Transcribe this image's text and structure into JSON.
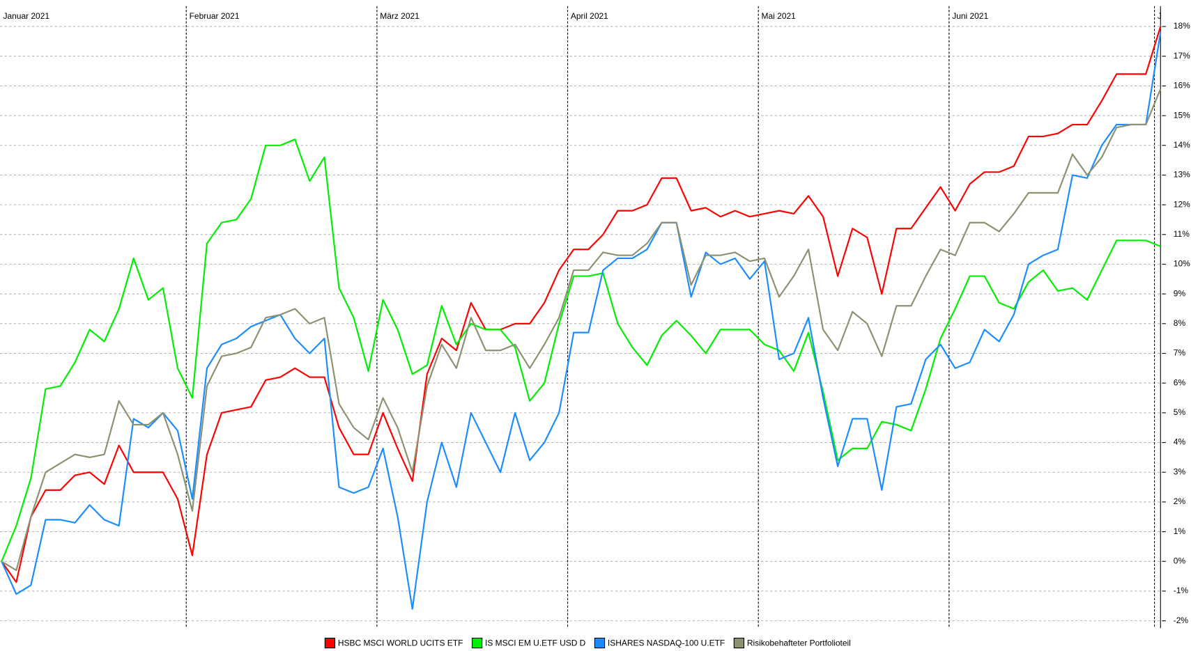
{
  "chart_data": {
    "type": "line",
    "categories": [
      "Januar 2021",
      null,
      null,
      null,
      null,
      null,
      null,
      null,
      null,
      null,
      null,
      null,
      null,
      "Februar 2021",
      null,
      null,
      null,
      null,
      null,
      null,
      null,
      null,
      null,
      null,
      null,
      null,
      "März 2021",
      null,
      null,
      null,
      null,
      null,
      null,
      null,
      null,
      null,
      null,
      null,
      null,
      "April 2021",
      null,
      null,
      null,
      null,
      null,
      null,
      null,
      null,
      null,
      null,
      null,
      null,
      "Mai 2021",
      null,
      null,
      null,
      null,
      null,
      null,
      null,
      null,
      null,
      null,
      null,
      null,
      "Juni 2021",
      null,
      null,
      null,
      null,
      null,
      null,
      null,
      null,
      null,
      null,
      null,
      null,
      null,
      "J"
    ],
    "series": [
      {
        "name": "HSBC MSCI WORLD UCITS ETF",
        "color": "#ff0000",
        "values": [
          0,
          -0.7,
          1.5,
          2.4,
          2.4,
          2.9,
          3.0,
          2.6,
          3.9,
          3.0,
          3.0,
          3.0,
          2.1,
          0.2,
          3.6,
          5.0,
          5.1,
          5.2,
          6.1,
          6.2,
          6.5,
          6.2,
          6.2,
          4.5,
          3.6,
          3.6,
          5.0,
          3.8,
          2.7,
          6.3,
          7.5,
          7.1,
          8.7,
          7.8,
          7.8,
          8.0,
          8.0,
          8.7,
          9.8,
          10.5,
          10.5,
          11.0,
          11.8,
          11.8,
          12.0,
          12.9,
          12.9,
          11.8,
          11.9,
          11.6,
          11.8,
          11.6,
          11.7,
          11.8,
          11.7,
          12.3,
          11.6,
          9.6,
          11.2,
          10.9,
          9.0,
          11.2,
          11.2,
          11.9,
          12.6,
          11.8,
          12.7,
          13.1,
          13.1,
          13.3,
          14.3,
          14.3,
          14.4,
          14.7,
          14.7,
          15.5,
          16.4,
          16.4,
          16.4,
          18.0
        ]
      },
      {
        "name": "IS MSCI EM U.ETF USD D",
        "color": "#00ee00",
        "values": [
          0,
          1.2,
          2.8,
          5.8,
          5.9,
          6.7,
          7.8,
          7.4,
          8.5,
          10.2,
          8.8,
          9.2,
          6.5,
          5.5,
          10.7,
          11.4,
          11.5,
          12.2,
          14.0,
          14.0,
          14.2,
          12.8,
          13.6,
          9.2,
          8.2,
          6.4,
          8.8,
          7.8,
          6.3,
          6.6,
          8.6,
          7.3,
          8.0,
          7.8,
          7.8,
          7.2,
          5.4,
          6.0,
          8.0,
          9.6,
          9.6,
          9.7,
          8.0,
          7.2,
          6.6,
          7.6,
          8.1,
          7.6,
          7.0,
          7.8,
          7.8,
          7.8,
          7.3,
          7.1,
          6.4,
          7.7,
          5.7,
          3.4,
          3.8,
          3.8,
          4.7,
          4.6,
          4.4,
          5.8,
          7.5,
          8.5,
          9.6,
          9.6,
          8.7,
          8.5,
          9.4,
          9.8,
          9.1,
          9.2,
          8.8,
          9.8,
          10.8,
          10.8,
          10.8,
          10.6
        ]
      },
      {
        "name": "ISHARES NASDAQ-100 U.ETF",
        "color": "#1a8cff",
        "values": [
          0,
          -1.1,
          -0.8,
          1.4,
          1.4,
          1.3,
          1.9,
          1.4,
          1.2,
          4.8,
          4.5,
          5.0,
          4.4,
          2.1,
          6.5,
          7.3,
          7.5,
          7.9,
          8.1,
          8.3,
          7.5,
          7.0,
          7.5,
          2.5,
          2.3,
          2.5,
          3.8,
          1.5,
          -1.6,
          2.0,
          4.0,
          2.5,
          5.0,
          4.0,
          3.0,
          5.0,
          3.4,
          4.0,
          5.0,
          7.7,
          7.7,
          9.8,
          10.2,
          10.2,
          10.5,
          11.4,
          11.4,
          8.9,
          10.4,
          10.0,
          10.2,
          9.5,
          10.1,
          6.8,
          7.0,
          8.2,
          5.5,
          3.2,
          4.8,
          4.8,
          2.4,
          5.2,
          5.3,
          6.8,
          7.3,
          6.5,
          6.7,
          7.8,
          7.4,
          8.3,
          10.0,
          10.3,
          10.5,
          13.0,
          12.9,
          14.0,
          14.7,
          14.7,
          14.7,
          17.8
        ]
      },
      {
        "name": "Risikobehafteter Portfolioteil",
        "color": "#8c9170",
        "values": [
          0,
          -0.3,
          1.5,
          3.0,
          3.3,
          3.6,
          3.5,
          3.6,
          5.4,
          4.6,
          4.6,
          5.0,
          3.6,
          1.7,
          5.9,
          6.9,
          7.0,
          7.2,
          8.2,
          8.3,
          8.5,
          8.0,
          8.2,
          5.3,
          4.5,
          4.1,
          5.5,
          4.5,
          3.0,
          5.9,
          7.3,
          6.5,
          8.2,
          7.1,
          7.1,
          7.3,
          6.5,
          7.3,
          8.2,
          9.8,
          9.8,
          10.4,
          10.3,
          10.3,
          10.7,
          11.4,
          11.4,
          9.3,
          10.3,
          10.3,
          10.4,
          10.1,
          10.2,
          8.9,
          9.6,
          10.5,
          7.8,
          7.1,
          8.4,
          8.0,
          6.9,
          8.6,
          8.6,
          9.6,
          10.5,
          10.3,
          11.4,
          11.4,
          11.1,
          11.7,
          12.4,
          12.4,
          12.4,
          13.7,
          13.0,
          13.6,
          14.6,
          14.7,
          14.7,
          15.9
        ]
      }
    ],
    "ylim": [
      -2.25,
      18.1
    ],
    "yticks": [
      {
        "value": -2,
        "label": "-2%"
      },
      {
        "value": -1,
        "label": "-1%"
      },
      {
        "value": 0,
        "label": "0%"
      },
      {
        "value": 1,
        "label": "1%"
      },
      {
        "value": 2,
        "label": "2%"
      },
      {
        "value": 3,
        "label": "3%"
      },
      {
        "value": 4,
        "label": "4%"
      },
      {
        "value": 5,
        "label": "5%"
      },
      {
        "value": 6,
        "label": "6%"
      },
      {
        "value": 7,
        "label": "7%"
      },
      {
        "value": 8,
        "label": "8%"
      },
      {
        "value": 9,
        "label": "9%"
      },
      {
        "value": 10,
        "label": "10%"
      },
      {
        "value": 11,
        "label": "11%"
      },
      {
        "value": 12,
        "label": "12%"
      },
      {
        "value": 13,
        "label": "13%"
      },
      {
        "value": 14,
        "label": "14%"
      },
      {
        "value": 15,
        "label": "15%"
      },
      {
        "value": 16,
        "label": "16%"
      },
      {
        "value": 17,
        "label": "17%"
      },
      {
        "value": 18,
        "label": "18%"
      }
    ],
    "grid": true,
    "legend": "bottom"
  }
}
